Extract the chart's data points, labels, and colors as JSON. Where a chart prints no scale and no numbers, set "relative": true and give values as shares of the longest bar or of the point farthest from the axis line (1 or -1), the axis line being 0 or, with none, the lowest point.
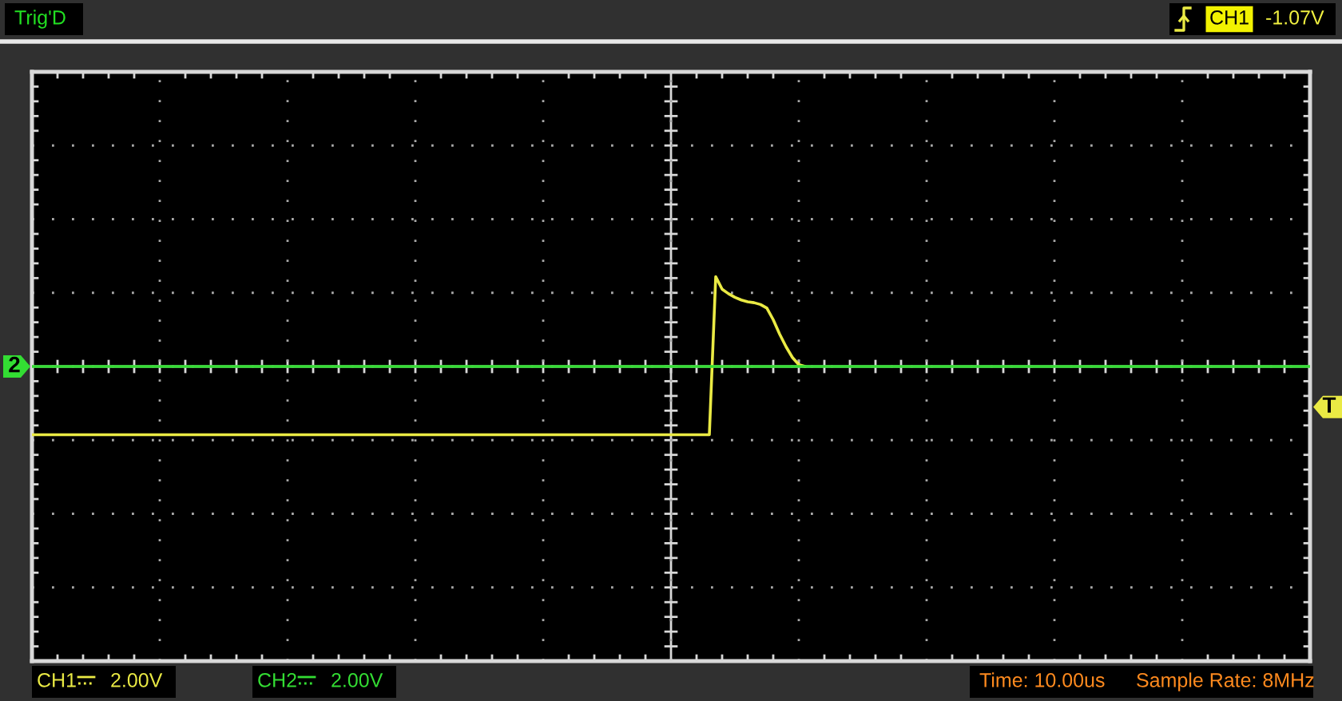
{
  "chart_data": {
    "type": "line",
    "relative": true,
    "grid": true,
    "tick_labels": false,
    "legend": "bottom left",
    "categories": [
      null,
      null,
      null,
      null,
      null,
      null,
      null,
      null,
      null,
      null,
      null,
      null,
      null,
      null,
      null,
      null,
      null,
      null,
      null,
      null,
      null,
      null,
      null,
      null,
      null,
      null,
      null,
      null,
      null,
      null,
      null,
      null,
      null,
      null,
      null,
      null,
      null,
      null,
      null,
      null,
      null,
      null,
      null,
      null,
      null,
      null,
      null,
      null,
      null,
      null,
      null,
      null,
      null,
      null,
      null,
      null,
      null,
      null,
      null,
      null,
      null,
      null,
      null,
      null,
      null,
      null,
      null,
      null,
      null,
      null,
      null,
      null,
      null,
      null,
      null,
      null,
      null,
      null,
      null,
      null,
      null,
      null,
      null,
      null,
      null,
      null,
      null,
      null,
      null,
      null,
      null,
      null,
      null,
      null,
      null,
      null,
      null,
      null,
      null,
      null,
      null,
      null,
      null,
      null,
      null,
      null,
      null,
      null,
      null,
      null,
      null,
      null,
      null,
      null,
      null,
      null,
      null,
      null,
      null,
      null,
      null,
      null,
      null,
      null,
      null,
      null,
      null,
      null,
      null,
      null,
      null,
      null,
      null,
      null,
      null,
      null,
      null,
      null,
      null,
      null,
      null,
      null,
      null,
      null,
      null,
      null,
      null,
      null,
      null,
      null,
      null,
      null,
      null,
      null,
      null,
      null,
      null,
      null,
      null,
      null,
      null,
      null,
      null,
      null,
      null,
      null,
      null,
      null,
      null,
      null,
      null,
      null,
      null,
      null,
      null,
      null,
      null,
      null,
      null,
      null,
      null,
      null,
      null,
      null,
      null,
      null,
      null,
      null,
      null,
      null,
      null,
      null,
      null,
      null,
      null,
      null,
      null,
      null,
      null,
      null,
      null
    ],
    "series": [
      {
        "name": "CH1",
        "color": "#eaea44",
        "values": [
          -0.76,
          -0.76,
          -0.76,
          -0.76,
          -0.76,
          -0.76,
          -0.76,
          -0.76,
          -0.76,
          -0.76,
          -0.76,
          -0.76,
          -0.76,
          -0.76,
          -0.76,
          -0.76,
          -0.76,
          -0.76,
          -0.76,
          -0.76,
          -0.76,
          -0.76,
          -0.76,
          -0.76,
          -0.76,
          -0.76,
          -0.76,
          -0.76,
          -0.76,
          -0.76,
          -0.76,
          -0.76,
          -0.76,
          -0.76,
          -0.76,
          -0.76,
          -0.76,
          -0.76,
          -0.76,
          -0.76,
          -0.76,
          -0.76,
          -0.76,
          -0.76,
          -0.76,
          -0.76,
          -0.76,
          -0.76,
          -0.76,
          -0.76,
          -0.76,
          -0.76,
          -0.76,
          -0.76,
          -0.76,
          -0.76,
          -0.76,
          -0.76,
          -0.76,
          -0.76,
          -0.76,
          -0.76,
          -0.76,
          -0.76,
          -0.76,
          -0.76,
          -0.76,
          -0.76,
          -0.76,
          -0.76,
          -0.76,
          -0.76,
          -0.76,
          -0.76,
          -0.76,
          -0.76,
          -0.76,
          -0.76,
          -0.76,
          -0.76,
          -0.76,
          -0.76,
          -0.76,
          -0.76,
          -0.76,
          -0.76,
          -0.76,
          -0.76,
          -0.76,
          -0.76,
          -0.76,
          -0.76,
          -0.76,
          -0.76,
          -0.76,
          -0.76,
          -0.76,
          -0.76,
          -0.76,
          -0.76,
          -0.76,
          -0.76,
          -0.76,
          -0.76,
          -0.76,
          -0.76,
          -0.76,
          1,
          0.86,
          0.81,
          0.77,
          0.74,
          0.72,
          0.71,
          0.69,
          0.65,
          0.52,
          0.36,
          0.22,
          0.1,
          0.02,
          0,
          null,
          null,
          null,
          null,
          null,
          null,
          null,
          null,
          null,
          null,
          null,
          null,
          null,
          null,
          null,
          null,
          null,
          null,
          null,
          null,
          null,
          null,
          null,
          null,
          null,
          null,
          null,
          null,
          null,
          null,
          null,
          null,
          null,
          null,
          null,
          null,
          null,
          null,
          null,
          null,
          null,
          null,
          null,
          null,
          null,
          null,
          null,
          null,
          null,
          null,
          null,
          null,
          null,
          null,
          null,
          null,
          null,
          null,
          null,
          null,
          null,
          null,
          null,
          null,
          null,
          null,
          null,
          null,
          null,
          null,
          null,
          null,
          null,
          null,
          null,
          null,
          null,
          null,
          null
        ]
      },
      {
        "name": "CH2",
        "color": "#33dd33",
        "values": [
          0,
          0,
          0,
          0,
          0,
          0,
          0,
          0,
          0,
          0,
          0,
          0,
          0,
          0,
          0,
          0,
          0,
          0,
          0,
          0,
          0,
          0,
          0,
          0,
          0,
          0,
          0,
          0,
          0,
          0,
          0,
          0,
          0,
          0,
          0,
          0,
          0,
          0,
          0,
          0,
          0,
          0,
          0,
          0,
          0,
          0,
          0,
          0,
          0,
          0,
          0,
          0,
          0,
          0,
          0,
          0,
          0,
          0,
          0,
          0,
          0,
          0,
          0,
          0,
          0,
          0,
          0,
          0,
          0,
          0,
          0,
          0,
          0,
          0,
          0,
          0,
          0,
          0,
          0,
          0,
          0,
          0,
          0,
          0,
          0,
          0,
          0,
          0,
          0,
          0,
          0,
          0,
          0,
          0,
          0,
          0,
          0,
          0,
          0,
          0,
          0,
          0,
          0,
          0,
          0,
          0,
          0,
          0,
          0,
          0,
          0,
          0,
          0,
          0,
          0,
          0,
          0,
          0,
          0,
          0,
          0,
          0,
          0,
          0,
          0,
          0,
          0,
          0,
          0,
          0,
          0,
          0,
          0,
          0,
          0,
          0,
          0,
          0,
          0,
          0,
          0,
          0,
          0,
          0,
          0,
          0,
          0,
          0,
          0,
          0,
          0,
          0,
          0,
          0,
          0,
          0,
          0,
          0,
          0,
          0,
          0,
          0,
          0,
          0,
          0,
          0,
          0,
          0,
          0,
          0,
          0,
          0,
          0,
          0,
          0,
          0,
          0,
          0,
          0,
          0,
          0,
          0,
          0,
          0,
          0,
          0,
          0,
          0,
          0,
          0,
          0,
          0,
          0,
          0,
          0,
          0,
          0,
          0,
          0,
          0,
          0
        ]
      }
    ],
    "annotations": [
      "Trig'D",
      "CH1",
      "-1.07V",
      "2.00V",
      "2.00V",
      "Time: 10.00us",
      "Sample Rate: 8MHz",
      {
        "text": "2",
        "y": 0
      },
      {
        "text": "T",
        "y": -0.45
      }
    ]
  }
}
